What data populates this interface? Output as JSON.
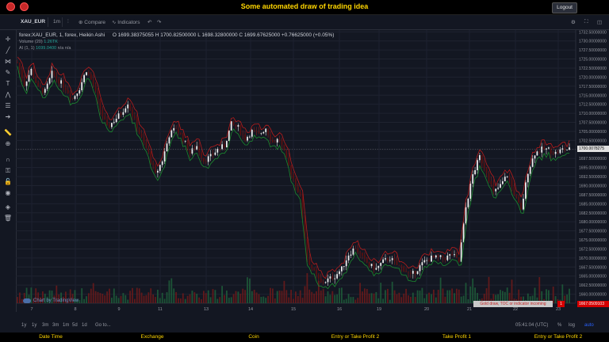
{
  "page_title": "Some automated draw of trading idea",
  "logout_label": "Logout",
  "toolbar": {
    "symbol": "XAU_EUR",
    "interval": "1m",
    "compare": "Compare",
    "indicators": "Indicators"
  },
  "legend": {
    "name": "forex:XAU_EUR, 1, forex, Heikin Ashi",
    "open": "O 1699.38375055",
    "high": "H 1700.82500000",
    "low": "L 1698.32800000",
    "close": "C 1699.67625000",
    "change": "+0.76625000 (+0.05%)",
    "volume_label": "Volume (20)",
    "volume_value": "1.26TK",
    "ai_label": "AI (1, 1)",
    "ai_value_1": "1699.0400",
    "ai_value_2": "n/a",
    "ai_value_3": "n/a",
    "na_1": "n/a",
    "na_2": "n/a"
  },
  "watermark": "Chart by TradingView",
  "alert_text": "Gold draw, TOC or indicator incoming",
  "alert_count": "1",
  "price_last": "1700.0078275",
  "price_red": "1667.0509103",
  "bottom": {
    "ranges": [
      "1y",
      "1y",
      "3m",
      "3m",
      "1m",
      "5d",
      "1d",
      "Go to..."
    ],
    "time": "05:41:04 (UTC)",
    "pct": "%",
    "log": "log",
    "auto": "auto"
  },
  "footer": [
    "Date Time",
    "Exchange",
    "Coin",
    "Entry or Take Profit 2",
    "Take Profit 1",
    "Entry or Take Profit 2"
  ],
  "colors": {
    "background": "#131722",
    "up": "#e0e0e0",
    "down": "#b71c1c",
    "accent": "#ffd600",
    "green_line": "#1b8a2e",
    "red_line": "#c62828"
  },
  "chart_data": {
    "type": "candlestick",
    "y_axis_labels": [
      "1732.50000000",
      "1730.00000000",
      "1727.50000000",
      "1725.00000000",
      "1722.50000000",
      "1720.00000000",
      "1717.50000000",
      "1715.00000000",
      "1712.50000000",
      "1710.00000000",
      "1707.50000000",
      "1705.00000000",
      "1702.50000000",
      "1700.00000000",
      "1697.50000000",
      "1695.00000000",
      "1692.50000000",
      "1690.00000000",
      "1687.50000000",
      "1685.00000000",
      "1682.50000000",
      "1680.00000000",
      "1677.50000000",
      "1675.00000000",
      "1672.50000000",
      "1670.00000000",
      "1667.50000000",
      "1665.00000000",
      "1662.50000000",
      "1660.00000000"
    ],
    "x_axis_labels": [
      "7",
      "8",
      "9",
      "11",
      "13",
      "14",
      "15",
      "16",
      "19",
      "20",
      "21",
      "22",
      "23"
    ],
    "ylim": [
      1657.5,
      1733.0
    ],
    "close_path": [
      [
        0,
        1724
      ],
      [
        3,
        1718
      ],
      [
        6,
        1722
      ],
      [
        9,
        1717
      ],
      [
        12,
        1716
      ],
      [
        15,
        1721
      ],
      [
        18,
        1719
      ],
      [
        21,
        1717
      ],
      [
        24,
        1714
      ],
      [
        27,
        1717
      ],
      [
        30,
        1722
      ],
      [
        33,
        1718
      ],
      [
        36,
        1711
      ],
      [
        39,
        1706
      ],
      [
        42,
        1708
      ],
      [
        45,
        1710
      ],
      [
        48,
        1713
      ],
      [
        51,
        1708
      ],
      [
        54,
        1703
      ],
      [
        57,
        1699
      ],
      [
        60,
        1693
      ],
      [
        63,
        1697
      ],
      [
        66,
        1704
      ],
      [
        69,
        1706
      ],
      [
        72,
        1703
      ],
      [
        75,
        1699
      ],
      [
        78,
        1701
      ],
      [
        81,
        1697
      ],
      [
        84,
        1698
      ],
      [
        87,
        1700
      ],
      [
        90,
        1701
      ],
      [
        93,
        1707
      ],
      [
        96,
        1706
      ],
      [
        99,
        1703
      ],
      [
        102,
        1705
      ],
      [
        105,
        1704
      ],
      [
        108,
        1706
      ],
      [
        111,
        1702
      ],
      [
        114,
        1703
      ],
      [
        117,
        1697
      ],
      [
        120,
        1692
      ],
      [
        123,
        1687
      ],
      [
        126,
        1670
      ],
      [
        129,
        1666
      ],
      [
        132,
        1663
      ],
      [
        135,
        1664
      ],
      [
        138,
        1665
      ],
      [
        141,
        1667
      ],
      [
        144,
        1671
      ],
      [
        147,
        1673
      ],
      [
        150,
        1670
      ],
      [
        153,
        1668
      ],
      [
        156,
        1667
      ],
      [
        159,
        1669
      ],
      [
        162,
        1670
      ],
      [
        165,
        1668
      ],
      [
        168,
        1667
      ],
      [
        171,
        1665
      ],
      [
        174,
        1667
      ],
      [
        177,
        1669
      ],
      [
        180,
        1670
      ],
      [
        183,
        1670
      ],
      [
        186,
        1670
      ],
      [
        189,
        1671
      ],
      [
        192,
        1669
      ],
      [
        195,
        1684
      ],
      [
        198,
        1693
      ],
      [
        201,
        1698
      ],
      [
        204,
        1694
      ],
      [
        207,
        1688
      ],
      [
        210,
        1690
      ],
      [
        213,
        1693
      ],
      [
        216,
        1688
      ],
      [
        219,
        1683
      ],
      [
        222,
        1694
      ],
      [
        225,
        1699
      ],
      [
        228,
        1700
      ],
      [
        231,
        1700
      ],
      [
        234,
        1699
      ],
      [
        237,
        1700
      ],
      [
        240,
        1700
      ]
    ],
    "series": [
      {
        "name": "Volume (20)",
        "kind": "volume"
      },
      {
        "name": "AI (1, 1)",
        "kind": "band"
      }
    ]
  }
}
